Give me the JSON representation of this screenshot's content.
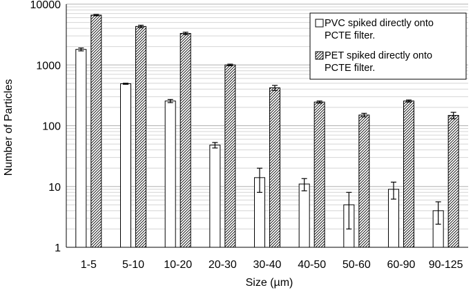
{
  "chart_data": {
    "type": "bar",
    "title": "",
    "xlabel": "Size (µm)",
    "ylabel": "Number of Particles",
    "yscale": "log",
    "ylim": [
      1,
      10000
    ],
    "ytick_labels": [
      "1",
      "10",
      "100",
      "1000",
      "10000"
    ],
    "grid": "horizontal",
    "legend_position": "top-right",
    "categories": [
      "1-5",
      "5-10",
      "10-20",
      "20-30",
      "30-40",
      "40-50",
      "50-60",
      "60-90",
      "90-125"
    ],
    "series": [
      {
        "name_lines": [
          "PVC spiked directly onto",
          "PCTE filter."
        ],
        "fill": "solid",
        "color": "#ffffff",
        "values": [
          1800,
          490,
          255,
          48,
          14,
          11,
          5,
          9,
          4
        ],
        "error": [
          100,
          10,
          15,
          5,
          6,
          2.5,
          3,
          2.8,
          1.6
        ]
      },
      {
        "name_lines": [
          "PET spiked directly onto",
          "PCTE filter."
        ],
        "fill": "diagonal-hatch",
        "color": "#ffffff",
        "values": [
          6600,
          4300,
          3300,
          1000,
          420,
          245,
          150,
          255,
          148
        ],
        "error": [
          150,
          200,
          150,
          30,
          40,
          10,
          10,
          10,
          18
        ]
      }
    ]
  }
}
